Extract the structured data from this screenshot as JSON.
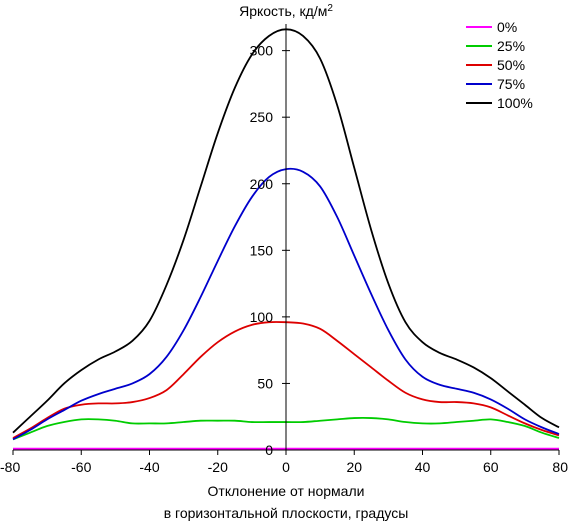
{
  "chart_data": {
    "type": "line",
    "title": "Яркость, кд/м",
    "title_superscript": "2",
    "xlabel_lines": [
      "Отклонение от нормали",
      "в горизонтальной плоскости, градусы"
    ],
    "ylabel": "",
    "xlim": [
      -80,
      80
    ],
    "ylim": [
      0,
      320
    ],
    "x_ticks": [
      -80,
      -60,
      -40,
      -20,
      0,
      20,
      40,
      60,
      80
    ],
    "y_ticks": [
      0,
      50,
      100,
      150,
      200,
      250,
      300
    ],
    "grid": false,
    "legend_position": "top-right",
    "series": [
      {
        "name": "0%",
        "color": "#ff00ff",
        "points": [
          [
            -80,
            1
          ],
          [
            -60,
            1
          ],
          [
            -40,
            1
          ],
          [
            -20,
            1
          ],
          [
            0,
            1
          ],
          [
            20,
            1
          ],
          [
            40,
            1
          ],
          [
            60,
            1
          ],
          [
            80,
            1
          ]
        ]
      },
      {
        "name": "25%",
        "color": "#00cc00",
        "points": [
          [
            -80,
            8
          ],
          [
            -75,
            13
          ],
          [
            -70,
            18
          ],
          [
            -65,
            21
          ],
          [
            -60,
            23
          ],
          [
            -55,
            23
          ],
          [
            -50,
            22
          ],
          [
            -45,
            20
          ],
          [
            -40,
            20
          ],
          [
            -35,
            20
          ],
          [
            -30,
            21
          ],
          [
            -25,
            22
          ],
          [
            -20,
            22
          ],
          [
            -15,
            22
          ],
          [
            -10,
            21
          ],
          [
            -5,
            21
          ],
          [
            0,
            21
          ],
          [
            5,
            21
          ],
          [
            10,
            22
          ],
          [
            15,
            23
          ],
          [
            20,
            24
          ],
          [
            25,
            24
          ],
          [
            30,
            23
          ],
          [
            35,
            21
          ],
          [
            40,
            20
          ],
          [
            45,
            20
          ],
          [
            50,
            21
          ],
          [
            55,
            22
          ],
          [
            60,
            23
          ],
          [
            65,
            21
          ],
          [
            70,
            18
          ],
          [
            75,
            13
          ],
          [
            80,
            9
          ]
        ]
      },
      {
        "name": "50%",
        "color": "#dd0000",
        "points": [
          [
            -80,
            9
          ],
          [
            -75,
            16
          ],
          [
            -70,
            24
          ],
          [
            -65,
            31
          ],
          [
            -60,
            34
          ],
          [
            -55,
            35
          ],
          [
            -50,
            35
          ],
          [
            -45,
            36
          ],
          [
            -40,
            39
          ],
          [
            -35,
            45
          ],
          [
            -30,
            57
          ],
          [
            -25,
            70
          ],
          [
            -20,
            81
          ],
          [
            -15,
            89
          ],
          [
            -10,
            94
          ],
          [
            -5,
            96
          ],
          [
            0,
            96
          ],
          [
            5,
            95
          ],
          [
            10,
            91
          ],
          [
            15,
            82
          ],
          [
            20,
            72
          ],
          [
            25,
            62
          ],
          [
            30,
            52
          ],
          [
            35,
            43
          ],
          [
            40,
            38
          ],
          [
            45,
            36
          ],
          [
            50,
            36
          ],
          [
            55,
            35
          ],
          [
            60,
            32
          ],
          [
            65,
            26
          ],
          [
            70,
            20
          ],
          [
            75,
            15
          ],
          [
            80,
            11
          ]
        ]
      },
      {
        "name": "75%",
        "color": "#0000cc",
        "points": [
          [
            -80,
            8
          ],
          [
            -75,
            15
          ],
          [
            -70,
            23
          ],
          [
            -65,
            30
          ],
          [
            -60,
            37
          ],
          [
            -55,
            42
          ],
          [
            -50,
            46
          ],
          [
            -45,
            50
          ],
          [
            -40,
            57
          ],
          [
            -35,
            70
          ],
          [
            -30,
            90
          ],
          [
            -25,
            115
          ],
          [
            -20,
            142
          ],
          [
            -15,
            168
          ],
          [
            -10,
            190
          ],
          [
            -5,
            205
          ],
          [
            0,
            211
          ],
          [
            5,
            209
          ],
          [
            10,
            198
          ],
          [
            15,
            175
          ],
          [
            20,
            146
          ],
          [
            25,
            117
          ],
          [
            30,
            90
          ],
          [
            35,
            68
          ],
          [
            40,
            55
          ],
          [
            45,
            49
          ],
          [
            50,
            46
          ],
          [
            55,
            43
          ],
          [
            60,
            38
          ],
          [
            65,
            31
          ],
          [
            70,
            23
          ],
          [
            75,
            17
          ],
          [
            80,
            12
          ]
        ]
      },
      {
        "name": "100%",
        "color": "#000000",
        "points": [
          [
            -80,
            13
          ],
          [
            -75,
            25
          ],
          [
            -70,
            37
          ],
          [
            -65,
            50
          ],
          [
            -60,
            60
          ],
          [
            -55,
            68
          ],
          [
            -50,
            74
          ],
          [
            -45,
            82
          ],
          [
            -40,
            97
          ],
          [
            -35,
            124
          ],
          [
            -30,
            158
          ],
          [
            -25,
            198
          ],
          [
            -20,
            238
          ],
          [
            -15,
            272
          ],
          [
            -10,
            297
          ],
          [
            -5,
            311
          ],
          [
            0,
            316
          ],
          [
            5,
            311
          ],
          [
            10,
            294
          ],
          [
            15,
            259
          ],
          [
            20,
            212
          ],
          [
            25,
            165
          ],
          [
            30,
            125
          ],
          [
            35,
            96
          ],
          [
            40,
            81
          ],
          [
            45,
            73
          ],
          [
            50,
            68
          ],
          [
            55,
            62
          ],
          [
            60,
            54
          ],
          [
            65,
            44
          ],
          [
            70,
            34
          ],
          [
            75,
            24
          ],
          [
            80,
            17
          ]
        ]
      }
    ]
  }
}
